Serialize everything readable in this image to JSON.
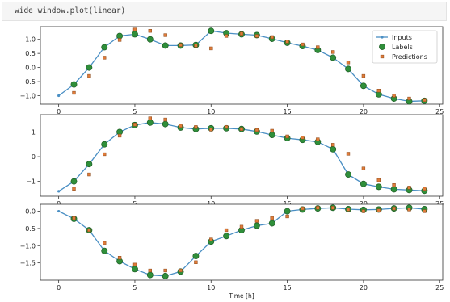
{
  "cell": {
    "code": "wide_window.plot(linear)"
  },
  "colors": {
    "inputs": "#4a8fc4",
    "labels": "#2f8f3a",
    "labels_edge": "#1e5c25",
    "predictions": "#e07b39",
    "predictions_edge": "#8a4a1a"
  },
  "chart_data": [
    {
      "type": "line",
      "x": [
        0,
        1,
        2,
        3,
        4,
        5,
        6,
        7,
        8,
        9,
        10,
        11,
        12,
        13,
        14,
        15,
        16,
        17,
        18,
        19,
        20,
        21,
        22,
        23,
        24
      ],
      "series": [
        {
          "name": "Inputs",
          "values": [
            -1.0,
            -0.6,
            0.0,
            0.72,
            1.12,
            1.18,
            1.0,
            0.78,
            0.78,
            0.8,
            1.3,
            1.22,
            1.18,
            1.15,
            1.02,
            0.88,
            0.76,
            0.62,
            0.35,
            -0.05,
            -0.65,
            -0.95,
            -1.1,
            -1.2,
            -1.18
          ]
        },
        {
          "name": "Labels",
          "x": [
            1,
            2,
            3,
            4,
            5,
            6,
            7,
            8,
            9,
            10,
            11,
            12,
            13,
            14,
            15,
            16,
            17,
            18,
            19,
            20,
            21,
            22,
            23,
            24
          ],
          "values": [
            -0.6,
            0.0,
            0.72,
            1.12,
            1.18,
            1.0,
            0.78,
            0.78,
            0.8,
            1.3,
            1.22,
            1.18,
            1.15,
            1.02,
            0.88,
            0.76,
            0.62,
            0.35,
            -0.05,
            -0.65,
            -0.95,
            -1.1,
            -1.2,
            -1.18
          ]
        },
        {
          "name": "Predictions",
          "x": [
            1,
            2,
            3,
            4,
            5,
            6,
            7,
            8,
            9,
            10,
            11,
            12,
            13,
            14,
            15,
            16,
            17,
            18,
            19,
            20,
            21,
            22,
            23,
            24
          ],
          "values": [
            -0.9,
            -0.3,
            0.35,
            0.98,
            1.35,
            1.3,
            1.15,
            0.8,
            0.78,
            0.68,
            1.12,
            1.2,
            1.12,
            1.08,
            0.92,
            0.82,
            0.72,
            0.55,
            0.18,
            -0.3,
            -0.82,
            -1.0,
            -1.1,
            -1.15
          ]
        }
      ],
      "yticks": [
        1.0,
        0.5,
        0.0,
        -0.5,
        -1.0
      ],
      "ytick_labels": [
        "1.0",
        "0.5",
        "0.0",
        "−0.5",
        "−1.0"
      ],
      "xticks": [
        0,
        5,
        10,
        15,
        20,
        25
      ],
      "xtick_labels": [
        "0",
        "5",
        "10",
        "15",
        "20",
        "25"
      ],
      "xlim": [
        -1.2,
        25.2
      ],
      "ylim": [
        -1.3,
        1.45
      ],
      "legend": {
        "placement": "top-right",
        "entries": [
          "Inputs",
          "Labels",
          "Predictions"
        ]
      }
    },
    {
      "type": "line",
      "x": [
        0,
        1,
        2,
        3,
        4,
        5,
        6,
        7,
        8,
        9,
        10,
        11,
        12,
        13,
        14,
        15,
        16,
        17,
        18,
        19,
        20,
        21,
        22,
        23,
        24
      ],
      "series": [
        {
          "name": "Inputs",
          "values": [
            -1.4,
            -1.0,
            -0.3,
            0.5,
            1.0,
            1.28,
            1.38,
            1.32,
            1.18,
            1.12,
            1.15,
            1.15,
            1.12,
            1.02,
            0.88,
            0.75,
            0.68,
            0.6,
            0.3,
            -0.72,
            -1.1,
            -1.22,
            -1.32,
            -1.35,
            -1.38
          ]
        },
        {
          "name": "Labels",
          "x": [
            1,
            2,
            3,
            4,
            5,
            6,
            7,
            8,
            9,
            10,
            11,
            12,
            13,
            14,
            15,
            16,
            17,
            18,
            19,
            20,
            21,
            22,
            23,
            24
          ],
          "values": [
            -1.0,
            -0.3,
            0.5,
            1.0,
            1.28,
            1.38,
            1.32,
            1.18,
            1.12,
            1.15,
            1.15,
            1.12,
            1.02,
            0.88,
            0.75,
            0.68,
            0.6,
            0.3,
            -0.72,
            -1.1,
            -1.22,
            -1.32,
            -1.35,
            -1.38
          ]
        },
        {
          "name": "Predictions",
          "x": [
            1,
            2,
            3,
            4,
            5,
            6,
            7,
            8,
            9,
            10,
            11,
            12,
            13,
            14,
            15,
            16,
            17,
            18,
            19,
            20,
            21,
            22,
            23,
            24
          ],
          "values": [
            -1.3,
            -0.72,
            0.1,
            0.85,
            1.3,
            1.55,
            1.5,
            1.25,
            1.2,
            1.1,
            1.2,
            1.12,
            1.08,
            1.05,
            0.82,
            0.78,
            0.7,
            0.48,
            0.12,
            -0.48,
            -0.95,
            -1.15,
            -1.25,
            -1.3
          ]
        }
      ],
      "yticks": [
        1,
        0,
        -1
      ],
      "ytick_labels": [
        "1",
        "0",
        "−1"
      ],
      "xticks": [
        0,
        5,
        10,
        15,
        20,
        25
      ],
      "xtick_labels": [
        "0",
        "5",
        "10",
        "15",
        "20",
        "25"
      ],
      "xlim": [
        -1.2,
        25.2
      ],
      "ylim": [
        -1.6,
        1.7
      ]
    },
    {
      "type": "line",
      "x": [
        0,
        1,
        2,
        3,
        4,
        5,
        6,
        7,
        8,
        9,
        10,
        11,
        12,
        13,
        14,
        15,
        16,
        17,
        18,
        19,
        20,
        21,
        22,
        23,
        24
      ],
      "series": [
        {
          "name": "Inputs",
          "values": [
            0.0,
            -0.22,
            -0.55,
            -1.15,
            -1.45,
            -1.68,
            -1.85,
            -1.88,
            -1.75,
            -1.3,
            -0.88,
            -0.72,
            -0.55,
            -0.42,
            -0.35,
            0.0,
            0.05,
            0.08,
            0.1,
            0.06,
            0.04,
            0.05,
            0.08,
            0.1,
            0.06
          ]
        },
        {
          "name": "Labels",
          "x": [
            1,
            2,
            3,
            4,
            5,
            6,
            7,
            8,
            9,
            10,
            11,
            12,
            13,
            14,
            15,
            16,
            17,
            18,
            19,
            20,
            21,
            22,
            23,
            24
          ],
          "values": [
            -0.22,
            -0.55,
            -1.15,
            -1.45,
            -1.68,
            -1.85,
            -1.88,
            -1.75,
            -1.3,
            -0.88,
            -0.72,
            -0.55,
            -0.42,
            -0.35,
            0.0,
            0.05,
            0.08,
            0.1,
            0.06,
            0.04,
            0.05,
            0.08,
            0.1,
            0.06
          ]
        },
        {
          "name": "Predictions",
          "x": [
            1,
            2,
            3,
            4,
            5,
            6,
            7,
            8,
            9,
            10,
            11,
            12,
            13,
            14,
            15,
            16,
            17,
            18,
            19,
            20,
            21,
            22,
            23,
            24
          ],
          "values": [
            -0.2,
            -0.55,
            -0.92,
            -1.35,
            -1.55,
            -1.72,
            -1.72,
            -1.72,
            -1.48,
            -0.82,
            -0.55,
            -0.45,
            -0.28,
            -0.2,
            -0.15,
            0.08,
            0.1,
            0.1,
            0.05,
            0.0,
            0.02,
            0.08,
            0.05,
            0.0
          ]
        }
      ],
      "yticks": [
        0.0,
        -0.5,
        -1.0,
        -1.5
      ],
      "ytick_labels": [
        "0.0",
        "−0.5",
        "−1.0",
        "−1.5"
      ],
      "xticks": [
        0,
        5,
        10,
        15,
        20,
        25
      ],
      "xtick_labels": [
        "0",
        "5",
        "10",
        "15",
        "20",
        "25"
      ],
      "xlim": [
        -1.2,
        25.2
      ],
      "ylim": [
        -2.0,
        0.2
      ],
      "xlabel": "Time [h]"
    }
  ]
}
